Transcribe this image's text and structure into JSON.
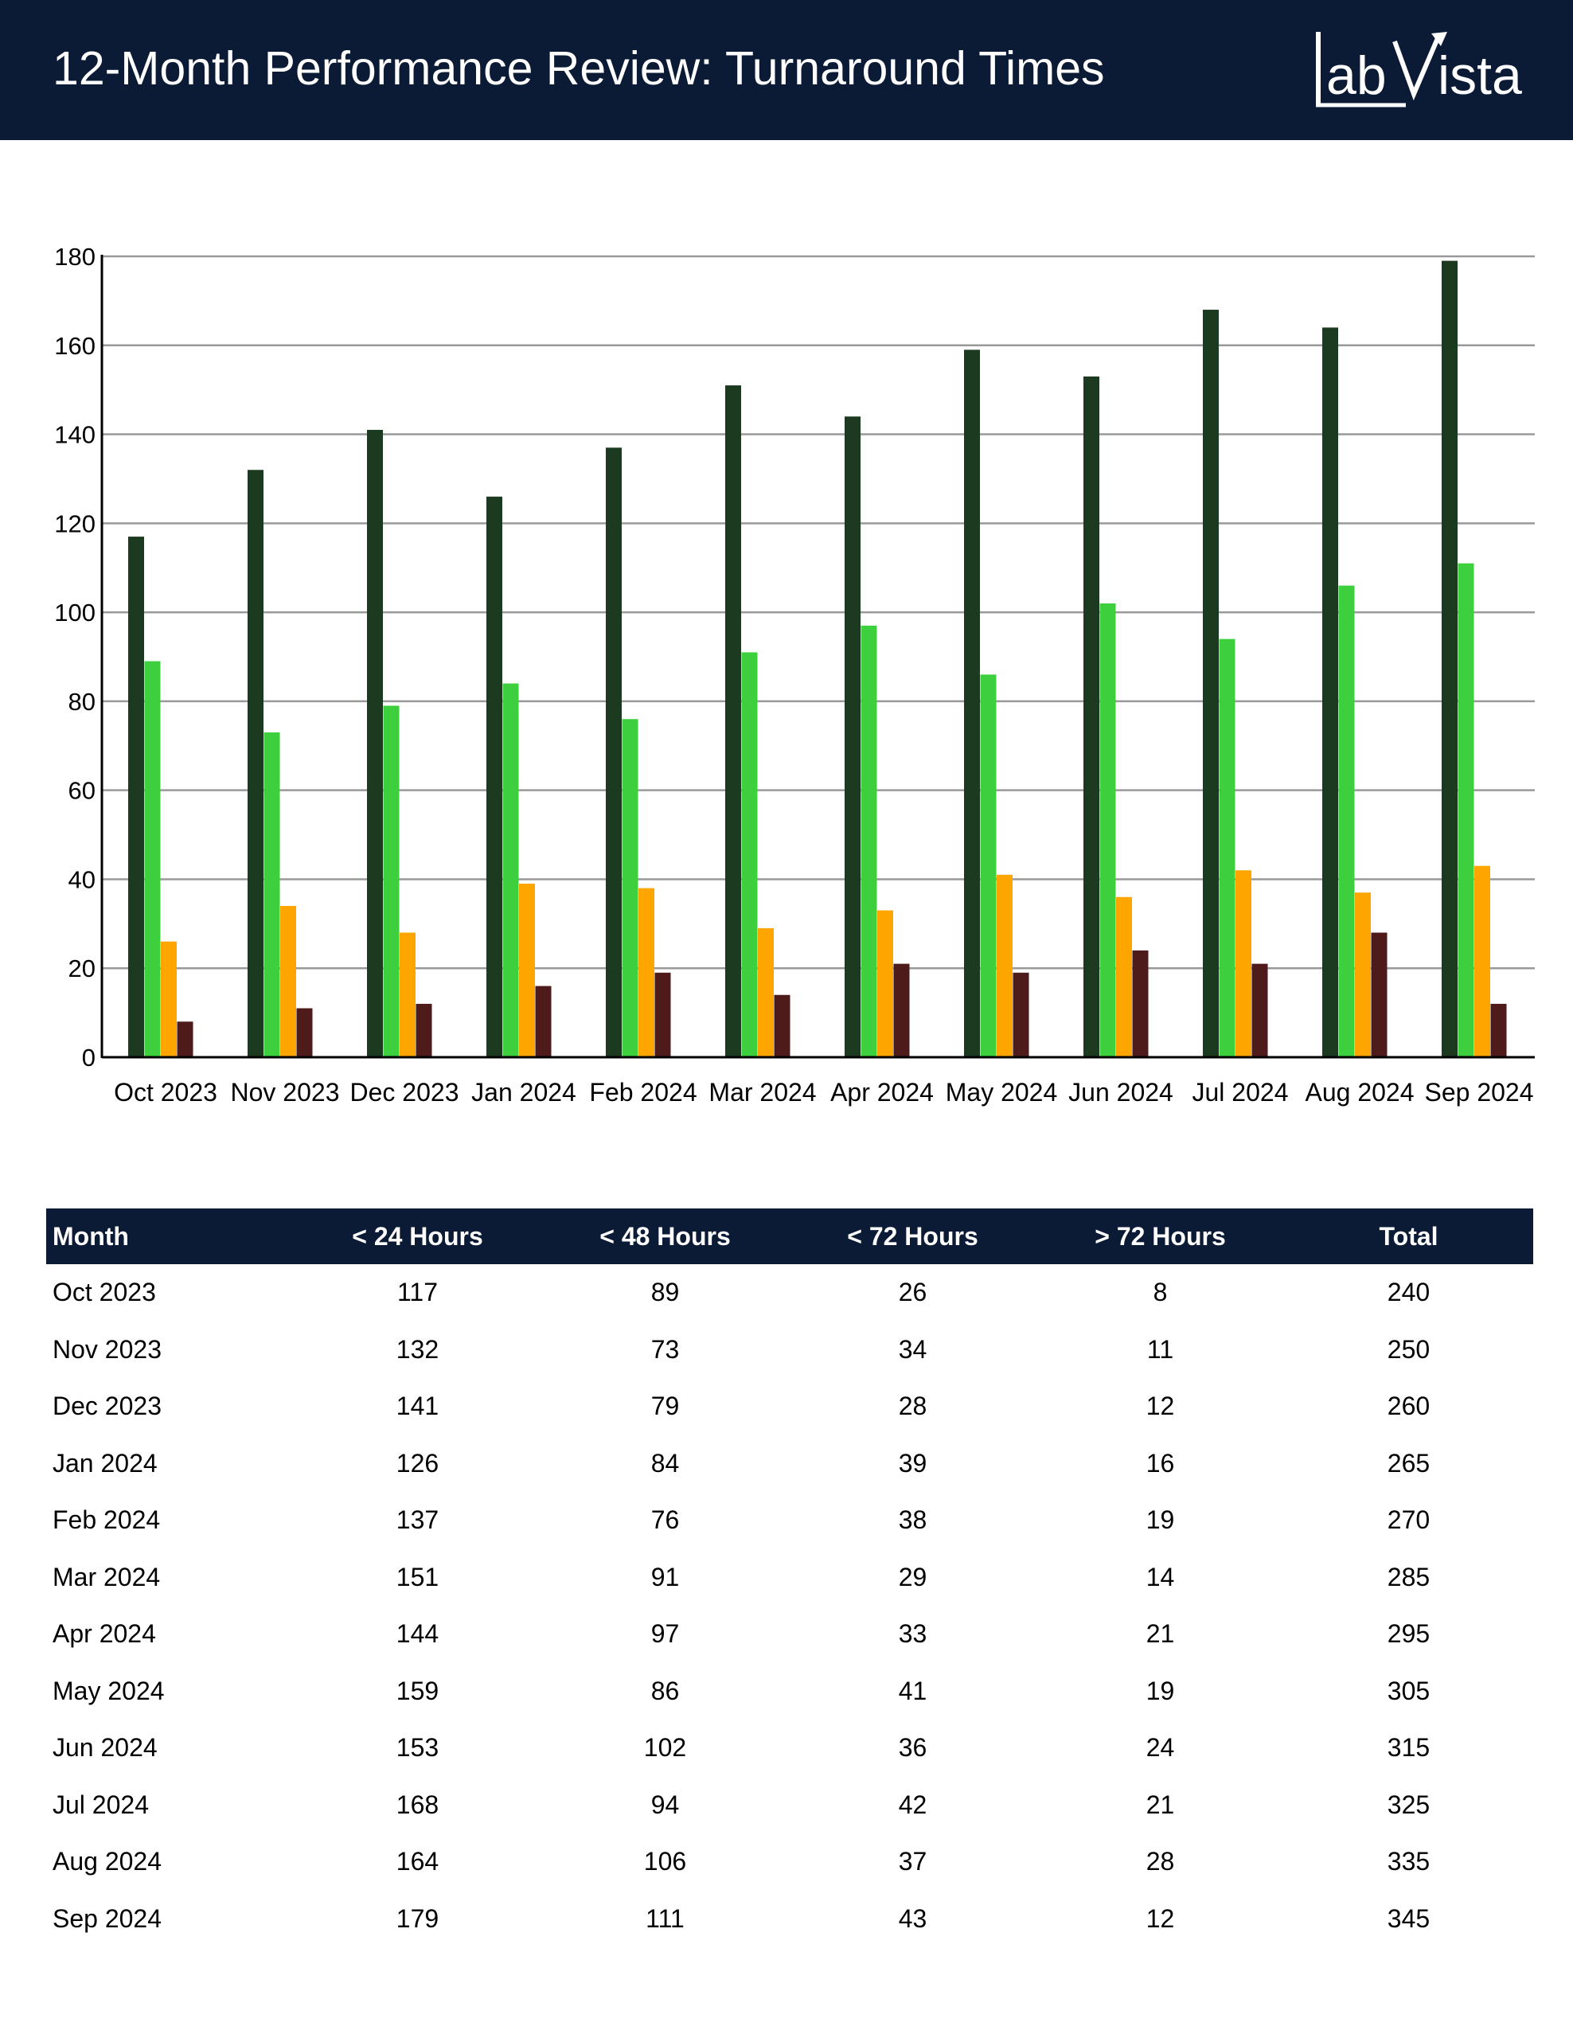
{
  "header": {
    "title": "12-Month Performance Review: Turnaround Times",
    "logo_text": "LabVista"
  },
  "colors": {
    "header_bg": "#0b1b35",
    "lt24": "#1c3a1f",
    "lt48": "#3dcf3d",
    "lt72": "#ffa500",
    "gt72": "#4e1a1a",
    "grid": "#999999"
  },
  "chart_data": {
    "type": "bar",
    "title": "",
    "xlabel": "",
    "ylabel": "",
    "ylim": [
      0,
      180
    ],
    "yticks": [
      0,
      20,
      40,
      60,
      80,
      100,
      120,
      140,
      160,
      180
    ],
    "categories": [
      "Oct 2023",
      "Nov 2023",
      "Dec 2023",
      "Jan 2024",
      "Feb 2024",
      "Mar 2024",
      "Apr 2024",
      "May 2024",
      "Jun 2024",
      "Jul 2024",
      "Aug 2024",
      "Sep 2024"
    ],
    "series": [
      {
        "name": "< 24 Hours",
        "values": [
          117,
          132,
          141,
          126,
          137,
          151,
          144,
          159,
          153,
          168,
          164,
          179
        ]
      },
      {
        "name": "< 48 Hours",
        "values": [
          89,
          73,
          79,
          84,
          76,
          91,
          97,
          86,
          102,
          94,
          106,
          111
        ]
      },
      {
        "name": "< 72 Hours",
        "values": [
          26,
          34,
          28,
          39,
          38,
          29,
          33,
          41,
          36,
          42,
          37,
          43
        ]
      },
      {
        "name": "> 72 Hours",
        "values": [
          8,
          11,
          12,
          16,
          19,
          14,
          21,
          19,
          24,
          21,
          28,
          12
        ]
      }
    ],
    "legend": "none",
    "grid": true
  },
  "table": {
    "headers": [
      "Month",
      "< 24 Hours",
      "< 48 Hours",
      "< 72 Hours",
      "> 72 Hours",
      "Total"
    ],
    "rows": [
      [
        "Oct 2023",
        "117",
        "89",
        "26",
        "8",
        "240"
      ],
      [
        "Nov 2023",
        "132",
        "73",
        "34",
        "11",
        "250"
      ],
      [
        "Dec 2023",
        "141",
        "79",
        "28",
        "12",
        "260"
      ],
      [
        "Jan 2024",
        "126",
        "84",
        "39",
        "16",
        "265"
      ],
      [
        "Feb 2024",
        "137",
        "76",
        "38",
        "19",
        "270"
      ],
      [
        "Mar 2024",
        "151",
        "91",
        "29",
        "14",
        "285"
      ],
      [
        "Apr 2024",
        "144",
        "97",
        "33",
        "21",
        "295"
      ],
      [
        "May 2024",
        "159",
        "86",
        "41",
        "19",
        "305"
      ],
      [
        "Jun 2024",
        "153",
        "102",
        "36",
        "24",
        "315"
      ],
      [
        "Jul 2024",
        "168",
        "94",
        "42",
        "21",
        "325"
      ],
      [
        "Aug 2024",
        "164",
        "106",
        "37",
        "28",
        "335"
      ],
      [
        "Sep 2024",
        "179",
        "111",
        "43",
        "12",
        "345"
      ]
    ]
  }
}
